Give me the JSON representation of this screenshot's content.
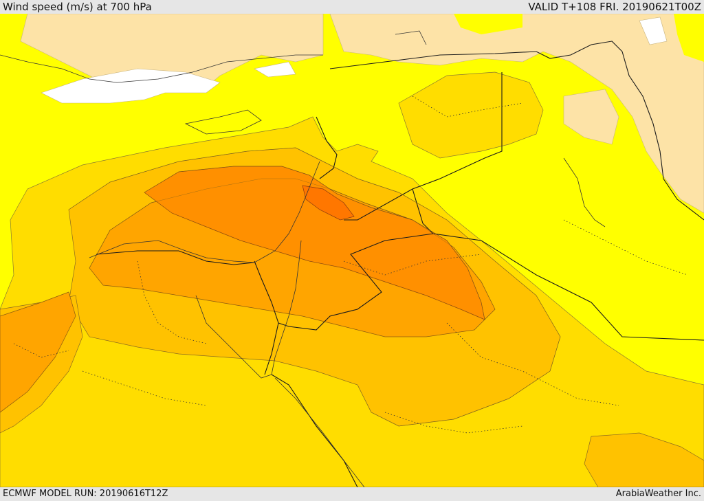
{
  "header": {
    "title": "Wind speed (m/s) at 700 hPa",
    "valid": "VALID T+108 FRI. 20190621T00Z"
  },
  "footer": {
    "model_run": "ECMWF MODEL RUN: 20190616T12Z",
    "credit": "ArabiaWeather Inc."
  },
  "colors": {
    "sea_calm": "#ffff00",
    "band_1": "#ffdd00",
    "band_2": "#ffc200",
    "band_3": "#ffa500",
    "band_4": "#ff9000",
    "band_5": "#ff7700",
    "low_land": "#fde3a7",
    "lowest": "#ffffff",
    "boundary": "#1a1a1a"
  }
}
